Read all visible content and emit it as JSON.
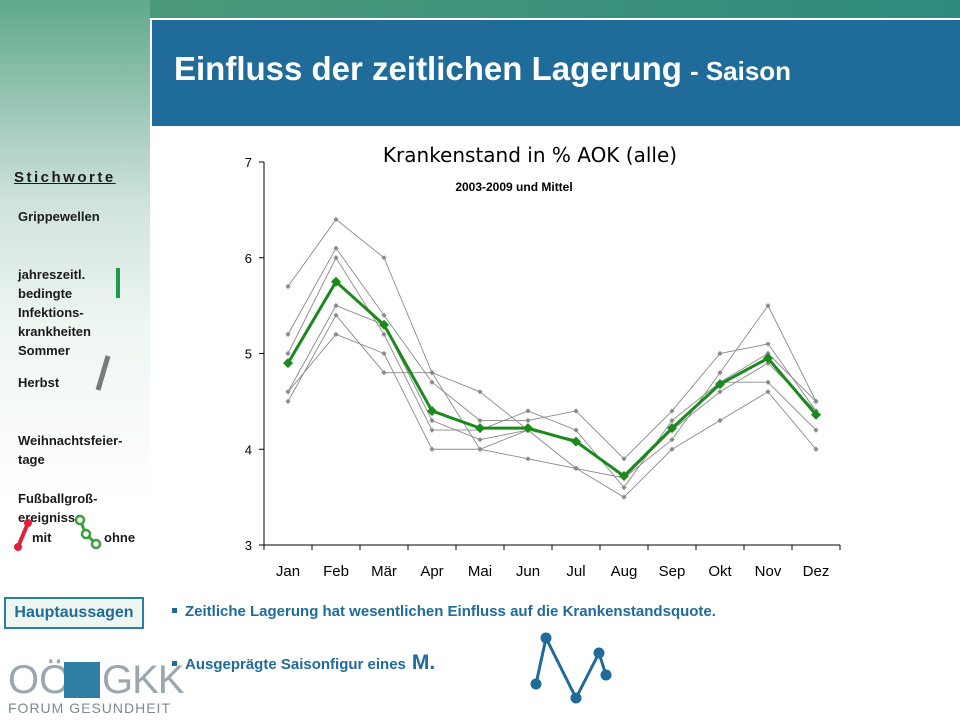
{
  "slide": {
    "title_main": "Einfluss der zeitlichen Lagerung",
    "title_sub": "- Saison"
  },
  "sidebar": {
    "heading": "Stichworte",
    "items": [
      "Grippewellen",
      "jahreszeitl.\nbedingte\nInfektions-\nkrankheiten",
      "Sommer",
      "Herbst",
      "Weihnachtsfeier-\ntage",
      "Fußballgroß-\nereignisse"
    ],
    "mit_label": "mit",
    "ohne_label": "ohne",
    "down_arrow_color": "#1f9a4a",
    "up_arrow_color": "#7a7a7a",
    "mit_icon_color": "#e0203a",
    "ohne_icon_color": "#3aa03a"
  },
  "nav": {
    "hauptaussagen_label": "Hauptaussagen"
  },
  "logo": {
    "text_top_left": "OÖ",
    "text_top_right": "GKK",
    "text_bottom": "FORUM GESUNDHEIT"
  },
  "bullets": [
    {
      "text": "Zeitliche Lagerung hat wesentlichen Einfluss auf die Krankenstandsquote."
    },
    {
      "text": "Ausgeprägte Saisonfigur eines",
      "emphasis": "M."
    }
  ],
  "m_icon_color": "#1f6b9a",
  "chart_data": {
    "type": "line",
    "title": "Krankenstand in % AOK (alle)",
    "subtitle": "2003-2009 und Mittel",
    "categories": [
      "Jan",
      "Feb",
      "Mär",
      "Apr",
      "Mai",
      "Jun",
      "Jul",
      "Aug",
      "Sep",
      "Okt",
      "Nov",
      "Dez"
    ],
    "ylim": [
      3,
      7
    ],
    "yticks": [
      3,
      4,
      5,
      6,
      7
    ],
    "series": [
      {
        "values": [
          5.7,
          6.4,
          6.0,
          4.8,
          4.6,
          4.2,
          4.1,
          3.7,
          4.1,
          4.8,
          5.5,
          4.5
        ],
        "color": "#8a8a8a"
      },
      {
        "values": [
          5.2,
          6.1,
          5.4,
          4.7,
          4.3,
          4.3,
          4.4,
          3.9,
          4.4,
          5.0,
          5.1,
          4.4
        ],
        "color": "#8a8a8a"
      },
      {
        "values": [
          5.0,
          6.0,
          5.2,
          4.2,
          4.2,
          4.4,
          4.2,
          3.6,
          4.3,
          4.7,
          5.0,
          4.5
        ],
        "color": "#8a8a8a"
      },
      {
        "values": [
          4.6,
          5.5,
          5.3,
          4.3,
          4.1,
          4.2,
          3.8,
          3.7,
          4.2,
          4.7,
          4.7,
          4.2
        ],
        "color": "#8a8a8a"
      },
      {
        "values": [
          4.5,
          5.4,
          4.8,
          4.8,
          4.0,
          3.9,
          3.8,
          3.5,
          4.0,
          4.3,
          4.6,
          4.0
        ],
        "color": "#8a8a8a"
      },
      {
        "values": [
          4.6,
          5.2,
          5.0,
          4.0,
          4.0,
          4.2,
          4.1,
          3.7,
          4.2,
          4.6,
          4.9,
          4.4
        ],
        "color": "#8a8a8a"
      },
      {
        "name": "Mittel",
        "values": [
          4.9,
          5.75,
          5.3,
          4.4,
          4.22,
          4.22,
          4.08,
          3.72,
          4.22,
          4.68,
          4.95,
          4.36
        ],
        "color": "#1a8a1a",
        "bold": true
      }
    ]
  }
}
